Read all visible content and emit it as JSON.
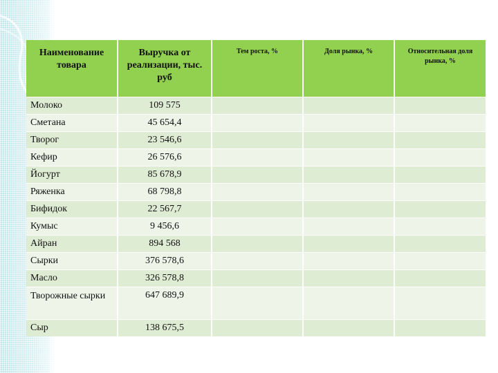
{
  "table": {
    "headers": [
      "Наименование товара",
      "Выручка от реализации, тыс. руб",
      "Тем роста, %",
      "Доля рынка, %",
      "Относительная доля рынка, %"
    ],
    "rows": [
      {
        "name": "Молоко",
        "revenue": "109 575"
      },
      {
        "name": "Сметана",
        "revenue": "45 654,4"
      },
      {
        "name": "Творог",
        "revenue": "23 546,6"
      },
      {
        "name": "Кефир",
        "revenue": "26 576,6"
      },
      {
        "name": "Йогурт",
        "revenue": "85 678,9"
      },
      {
        "name": "Ряженка",
        "revenue": "68 798,8"
      },
      {
        "name": "Бифидок",
        "revenue": "22 567,7"
      },
      {
        "name": "Кумыс",
        "revenue": "9 456,6"
      },
      {
        "name": "Айран",
        "revenue": "894 568"
      },
      {
        "name": "Сырки",
        "revenue": "376 578,6"
      },
      {
        "name": "Масло",
        "revenue": "326 578,8"
      },
      {
        "name": "Творожные сырки",
        "revenue": "647 689,9"
      },
      {
        "name": "Сыр",
        "revenue": "138 675,5"
      }
    ]
  }
}
